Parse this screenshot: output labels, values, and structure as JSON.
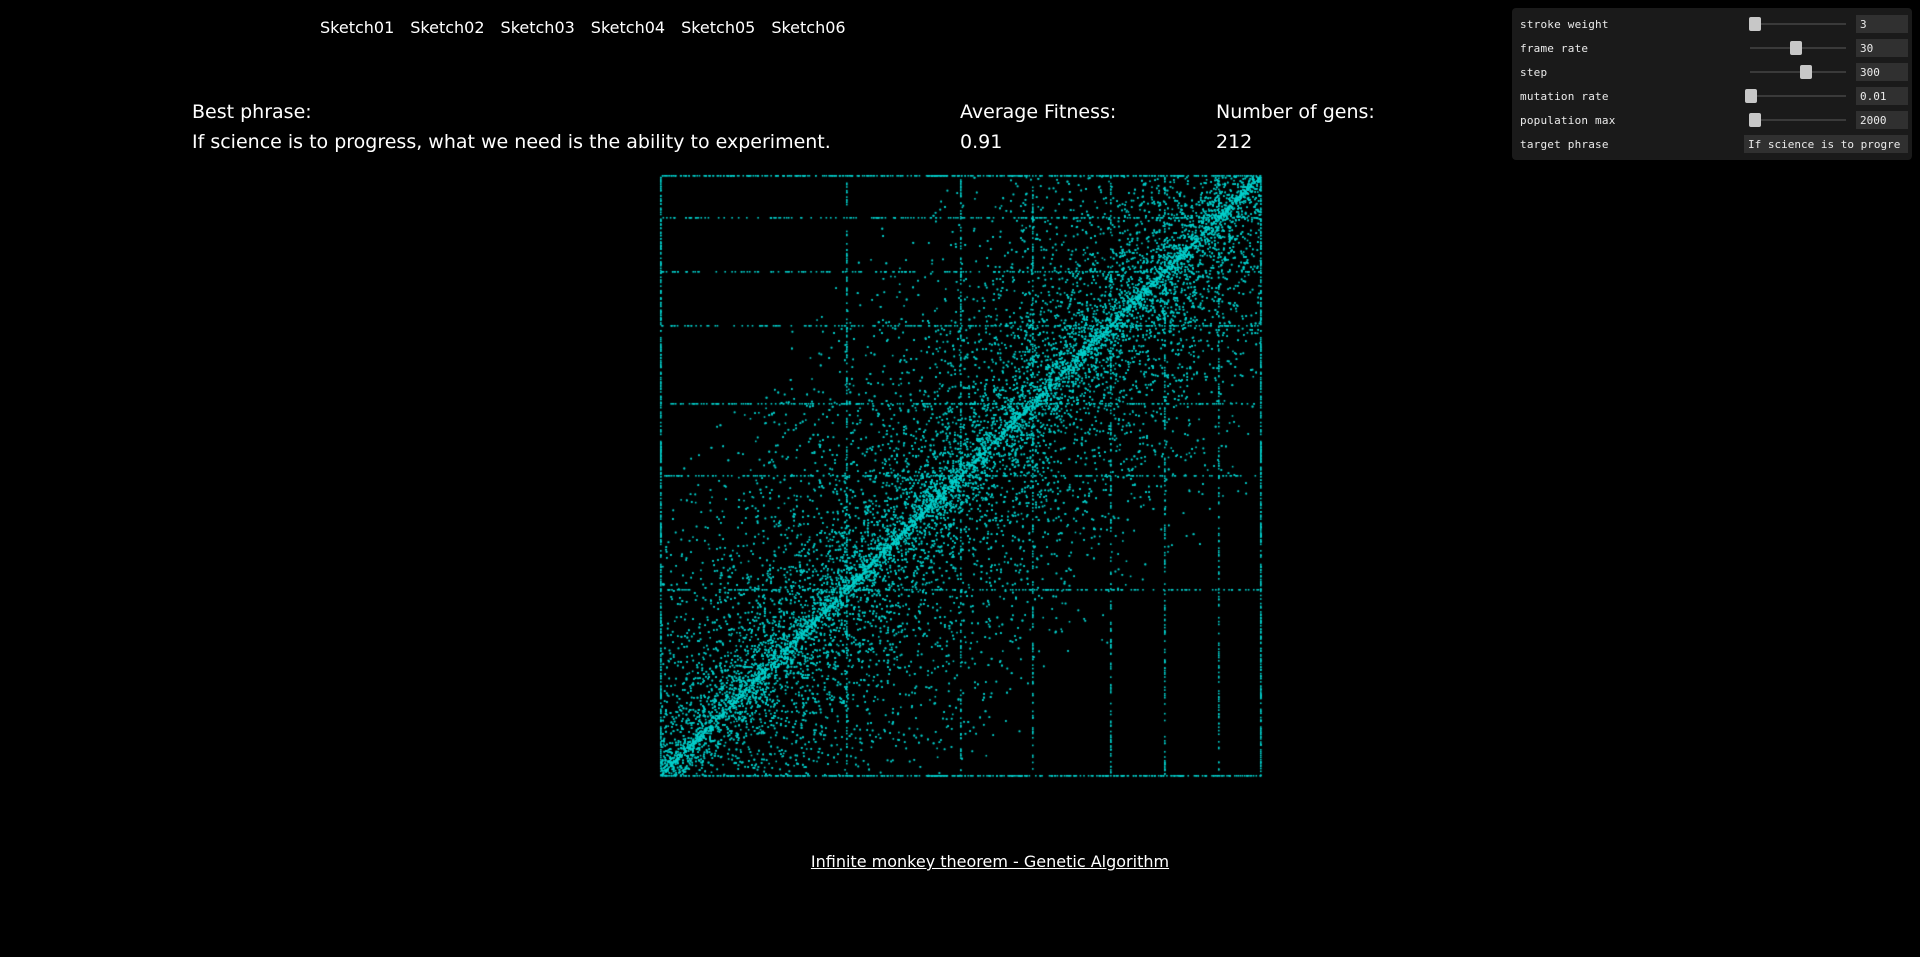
{
  "nav": {
    "links": [
      "Sketch01",
      "Sketch02",
      "Sketch03",
      "Sketch04",
      "Sketch05",
      "Sketch06"
    ]
  },
  "stats": {
    "best_phrase_label": "Best phrase:",
    "best_phrase_value": "If science is to progress, what we need is the ability to experiment.",
    "avg_fitness_label": "Average Fitness:",
    "avg_fitness_value": "0.91",
    "gens_label": "Number of gens:",
    "gens_value": "212"
  },
  "plot": {
    "point_color": "#00d0cc"
  },
  "footer": {
    "link_text": "Infinite monkey theorem - Genetic Algorithm"
  },
  "controls": [
    {
      "label": "stroke weight",
      "value": "3",
      "level": 0.05
    },
    {
      "label": "frame rate",
      "value": "30",
      "level": 0.48
    },
    {
      "label": "step",
      "value": "300",
      "level": 0.58
    },
    {
      "label": "mutation rate",
      "value": "0.01",
      "level": 0.01
    },
    {
      "label": "population max",
      "value": "2000",
      "level": 0.05
    }
  ],
  "target_phrase": {
    "label": "target phrase",
    "value": "If science is to progre"
  }
}
